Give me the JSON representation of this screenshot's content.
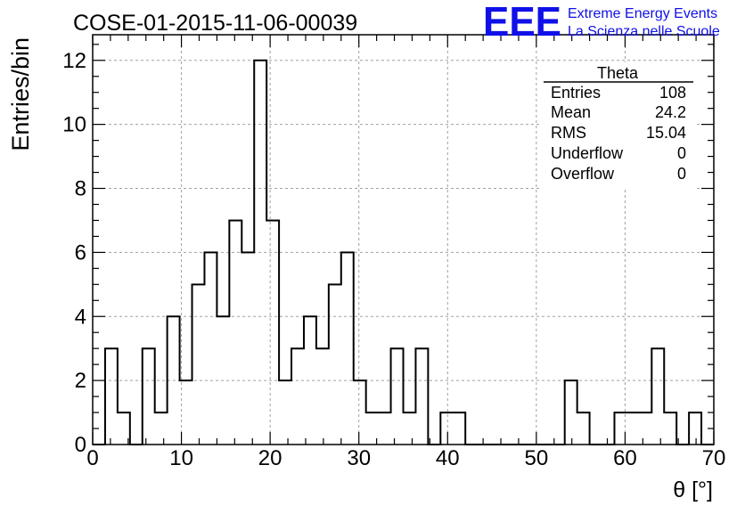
{
  "chart_data": {
    "type": "bar",
    "title": "COSE-01-2015-11-06-00039",
    "xlabel": "θ [°]",
    "ylabel": "Entries/bin",
    "xlim": [
      0,
      70
    ],
    "ylim": [
      0,
      12.8
    ],
    "grid": true,
    "bin_width": 1.4,
    "x_ticks": [
      "0",
      "10",
      "20",
      "30",
      "40",
      "50",
      "60",
      "70"
    ],
    "y_ticks": [
      "0",
      "2",
      "4",
      "6",
      "8",
      "10",
      "12"
    ],
    "counts": [
      0,
      3,
      1,
      0,
      3,
      1,
      4,
      2,
      5,
      6,
      4,
      7,
      6,
      12,
      7,
      2,
      3,
      4,
      3,
      5,
      6,
      2,
      1,
      1,
      3,
      1,
      3,
      0,
      1,
      1,
      0,
      0,
      0,
      0,
      0,
      0,
      0,
      0,
      2,
      1,
      0,
      0,
      1,
      1,
      1,
      3,
      1,
      0,
      1,
      0
    ],
    "stats_box": {
      "title": "Theta",
      "rows": [
        {
          "label": "Entries",
          "value": "108"
        },
        {
          "label": "Mean",
          "value": "24.2"
        },
        {
          "label": "RMS",
          "value": "15.04"
        },
        {
          "label": "Underflow",
          "value": "0"
        },
        {
          "label": "Overflow",
          "value": "0"
        }
      ]
    },
    "colors": {
      "line": "#000000",
      "grid": "#a0a0a0",
      "logo": "#1010e8"
    }
  },
  "logo": {
    "mark": "EEE",
    "line1": "Extreme Energy Events",
    "line2": "La Scienza nelle Scuole"
  }
}
